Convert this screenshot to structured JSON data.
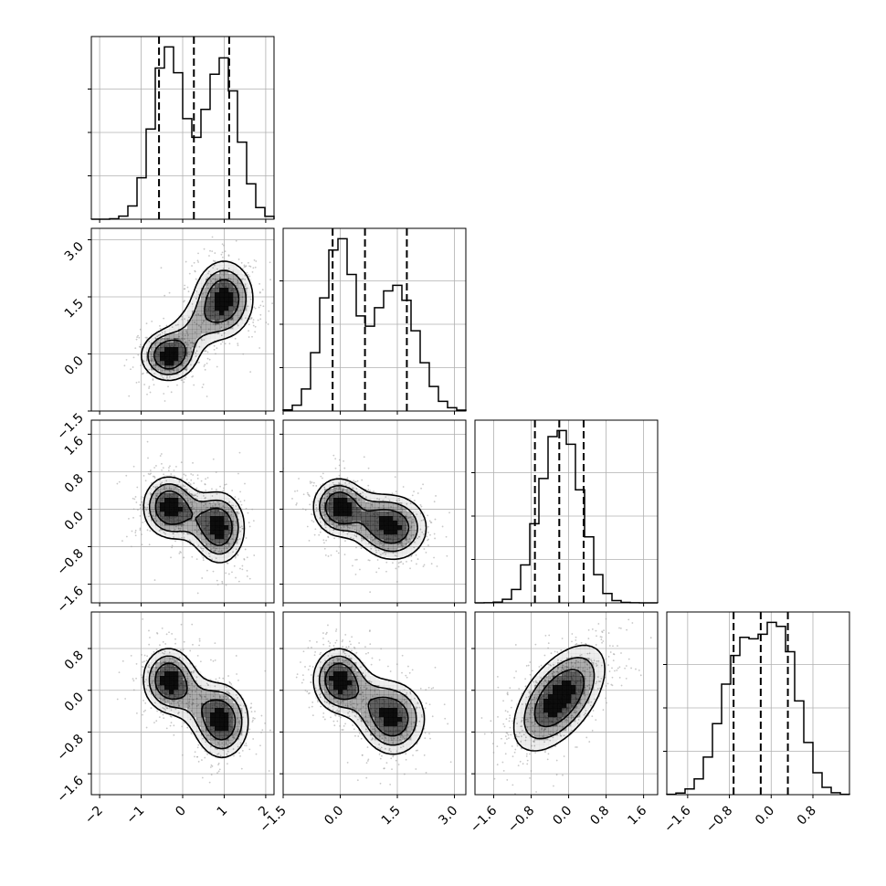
{
  "chart_data": {
    "type": "corner",
    "parameters": [
      {
        "id": "p0",
        "range": [
          -2.2,
          2.2
        ],
        "ticks": [
          -2,
          -1,
          0,
          1,
          2
        ],
        "tick_labels": [
          "−2",
          "−1",
          "0",
          "1",
          "2"
        ],
        "quantiles": [
          -0.57,
          0.27,
          1.12
        ],
        "modes": [
          {
            "mu": -0.35,
            "sigma": 0.38,
            "w": 0.5
          },
          {
            "mu": 0.95,
            "sigma": 0.4,
            "w": 0.5
          }
        ]
      },
      {
        "id": "p1",
        "range": [
          -1.5,
          3.3
        ],
        "ticks": [
          -1.5,
          0.0,
          1.5,
          3.0
        ],
        "tick_labels": [
          "−1.5",
          "0.0",
          "1.5",
          "3.0"
        ],
        "quantiles": [
          -0.2,
          0.65,
          1.75
        ],
        "modes": [
          {
            "mu": -0.05,
            "sigma": 0.42,
            "w": 0.5
          },
          {
            "mu": 1.45,
            "sigma": 0.55,
            "w": 0.5
          }
        ]
      },
      {
        "id": "p2",
        "range": [
          -2.0,
          1.9
        ],
        "ticks": [
          -1.6,
          -0.8,
          0.0,
          0.8,
          1.6
        ],
        "tick_labels": [
          "−1.6",
          "−0.8",
          "0.0",
          "0.8",
          "1.6"
        ],
        "quantiles": [
          -0.72,
          -0.2,
          0.32
        ],
        "modes": [
          {
            "mu": 0.05,
            "sigma": 0.35,
            "w": 0.5
          },
          {
            "mu": -0.4,
            "sigma": 0.35,
            "w": 0.5
          }
        ]
      },
      {
        "id": "p3",
        "range": [
          -2.0,
          1.5
        ],
        "ticks": [
          -1.6,
          -0.8,
          0.0,
          0.8
        ],
        "tick_labels": [
          "−1.6",
          "−0.8",
          "0.0",
          "0.8"
        ],
        "quantiles": [
          -0.72,
          -0.2,
          0.32
        ],
        "modes": [
          {
            "mu": 0.2,
            "sigma": 0.35,
            "w": 0.5
          },
          {
            "mu": -0.6,
            "sigma": 0.38,
            "w": 0.5
          }
        ]
      }
    ],
    "histogram_bins": 20,
    "panels": {
      "p1_vs_p0": {
        "blobs": [
          {
            "x": -0.35,
            "y": -0.05,
            "sx": 0.32,
            "sy": 0.32,
            "w": 1.0
          },
          {
            "x": 1.0,
            "y": 1.45,
            "sx": 0.35,
            "sy": 0.5,
            "w": 0.95
          }
        ],
        "bridge": true
      },
      "p2_vs_p0": {
        "blobs": [
          {
            "x": -0.35,
            "y": 0.05,
            "sx": 0.3,
            "sy": 0.32,
            "w": 1.0
          },
          {
            "x": 0.9,
            "y": -0.4,
            "sx": 0.3,
            "sy": 0.38,
            "w": 0.95
          }
        ],
        "bridge": true
      },
      "p2_vs_p1": {
        "blobs": [
          {
            "x": -0.05,
            "y": 0.05,
            "sx": 0.33,
            "sy": 0.3,
            "w": 1.0
          },
          {
            "x": 1.4,
            "y": -0.4,
            "sx": 0.45,
            "sy": 0.35,
            "w": 0.9
          }
        ],
        "bridge": true
      },
      "p3_vs_p0": {
        "blobs": [
          {
            "x": -0.35,
            "y": 0.2,
            "sx": 0.3,
            "sy": 0.3,
            "w": 1.0
          },
          {
            "x": 0.95,
            "y": -0.6,
            "sx": 0.32,
            "sy": 0.35,
            "w": 0.95
          }
        ],
        "bridge": true
      },
      "p3_vs_p1": {
        "blobs": [
          {
            "x": -0.05,
            "y": 0.2,
            "sx": 0.33,
            "sy": 0.3,
            "w": 1.0
          },
          {
            "x": 1.4,
            "y": -0.55,
            "sx": 0.42,
            "sy": 0.35,
            "w": 0.9
          }
        ],
        "bridge": true
      },
      "p3_vs_p2": {
        "blobs": [
          {
            "x": -0.2,
            "y": -0.15,
            "sx": 0.48,
            "sy": 0.5,
            "w": 1.0,
            "rho": 0.55
          }
        ],
        "bridge": false
      }
    },
    "scatter_points_per_panel": 650,
    "colors": {
      "line": "#000000",
      "grid": "#b0b0b0",
      "density": "#000000",
      "scatter": "#9a9a9a"
    }
  }
}
